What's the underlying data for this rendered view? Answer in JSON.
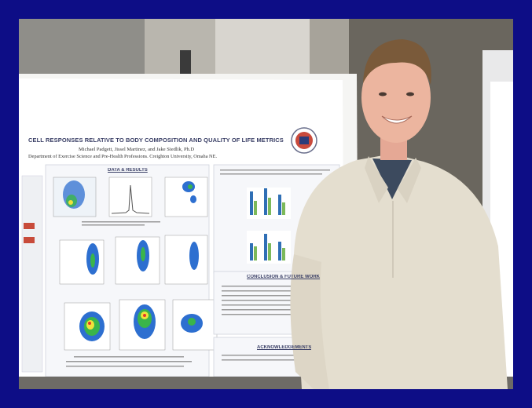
{
  "poster": {
    "title": "CELL RESPONSES RELATIVE TO BODY COMPOSITION AND QUALITY OF LIFE METRICS",
    "authors": "Michael Padgett, Jissel Martinez, and Jake Siedlik, Ph.D",
    "department": "Department of Exercise Science and Pre-Health Professions. Creighton University, Omaha NE.",
    "sections": {
      "data_results": "DATA & RESULTS",
      "conclusion": "CONCLUSION & FUTURE WORK",
      "acknowledgements": "ACKNOWLEDGEMENTS"
    }
  },
  "colors": {
    "frame": "#0d0d86",
    "wall": "#a9a59c",
    "poster_board": "#f4f4f2",
    "sweater": "#e4decf",
    "bar_blue": "#2f6fb5",
    "bar_green": "#7cb95a"
  },
  "icons": [
    "university-seal-icon"
  ]
}
